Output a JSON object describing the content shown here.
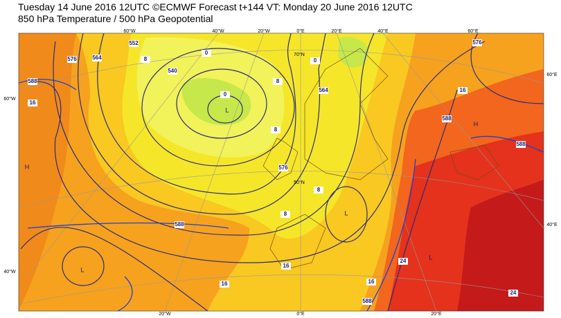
{
  "header": {
    "title": "Tuesday 14 June 2016 12UTC ©ECMWF Forecast t+144 VT: Monday 20 June 2016 12UTC",
    "subtitle": "850 hPa Temperature / 500 hPa Geopotential"
  },
  "graticule_labels": {
    "top": [
      "60°W",
      "40°W",
      "20°W",
      "0°E",
      "20°E",
      "40°E",
      "60°E"
    ],
    "left": [
      "60°W",
      "40°W"
    ],
    "right": [
      "60°E",
      "40°E"
    ],
    "bottom": [
      "20°W",
      "0°E",
      "20°E"
    ],
    "inner": [
      "70°N",
      "50°N"
    ]
  },
  "contour_labels": [
    "576",
    "564",
    "552",
    "8",
    "540",
    "0",
    "0",
    "8",
    "8",
    "0",
    "564",
    "576",
    "8",
    "8",
    "16",
    "16",
    "16",
    "588",
    "24",
    "24",
    "16",
    "588",
    "588",
    "576",
    "588",
    "16",
    "588"
  ],
  "pressure_centers": [
    "L",
    "L",
    "H",
    "H",
    "L",
    "L"
  ]
}
